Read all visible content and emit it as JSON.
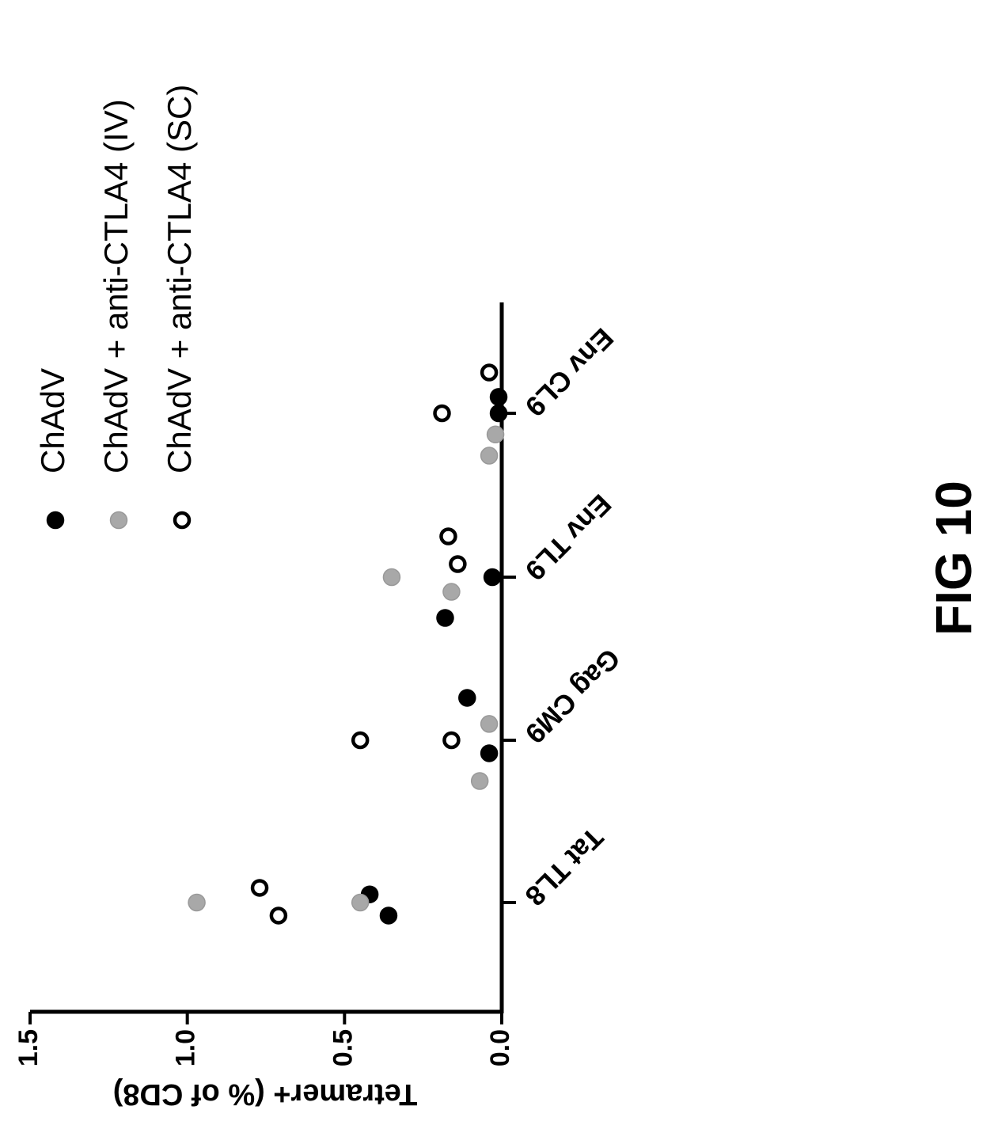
{
  "figure_label": "FIG 10",
  "chart_data": {
    "type": "scatter",
    "orientation": "rotated 90° counter-clockwise (value axis runs left-right, categories top-bottom)",
    "ylabel": "Tetramer+  (% of CD8)",
    "xlabel": "",
    "ylim": [
      0,
      1.5
    ],
    "yticks": [
      "0.0",
      "0.5",
      "1.0",
      "1.5"
    ],
    "categories": [
      "Tat TL8",
      "Gag CM9",
      "Env TL9",
      "Env CL9"
    ],
    "legend_position": "top",
    "series": [
      {
        "name": "ChAdV",
        "marker": "filled-circle",
        "color": "#000000",
        "points": [
          {
            "category": "Tat TL8",
            "offset": 0.05,
            "value": 0.42
          },
          {
            "category": "Tat TL8",
            "offset": -0.08,
            "value": 0.36
          },
          {
            "category": "Gag CM9",
            "offset": 0.26,
            "value": 0.11
          },
          {
            "category": "Gag CM9",
            "offset": -0.08,
            "value": 0.04
          },
          {
            "category": "Env TL9",
            "offset": -0.25,
            "value": 0.18
          },
          {
            "category": "Env TL9",
            "offset": 0.0,
            "value": 0.03
          },
          {
            "category": "Env CL9",
            "offset": 0.1,
            "value": 0.01
          },
          {
            "category": "Env CL9",
            "offset": 0.0,
            "value": 0.01
          }
        ]
      },
      {
        "name": "ChAdV + anti-CTLA4 (IV)",
        "marker": "filled-circle",
        "color": "#a8a8a8",
        "points": [
          {
            "category": "Tat TL8",
            "offset": 0.0,
            "value": 0.97
          },
          {
            "category": "Tat TL8",
            "offset": 0.0,
            "value": 0.45
          },
          {
            "category": "Gag CM9",
            "offset": 0.1,
            "value": 0.04
          },
          {
            "category": "Gag CM9",
            "offset": -0.25,
            "value": 0.07
          },
          {
            "category": "Env TL9",
            "offset": 0.0,
            "value": 0.35
          },
          {
            "category": "Env TL9",
            "offset": -0.09,
            "value": 0.16
          },
          {
            "category": "Env CL9",
            "offset": -0.13,
            "value": 0.02
          },
          {
            "category": "Env CL9",
            "offset": -0.26,
            "value": 0.04
          }
        ]
      },
      {
        "name": "ChAdV + anti-CTLA4 (SC)",
        "marker": "open-circle",
        "color": "#000000",
        "points": [
          {
            "category": "Tat TL8",
            "offset": 0.09,
            "value": 0.77
          },
          {
            "category": "Tat TL8",
            "offset": -0.08,
            "value": 0.71
          },
          {
            "category": "Gag CM9",
            "offset": 0.0,
            "value": 0.45
          },
          {
            "category": "Gag CM9",
            "offset": 0.0,
            "value": 0.16
          },
          {
            "category": "Env TL9",
            "offset": 0.25,
            "value": 0.17
          },
          {
            "category": "Env TL9",
            "offset": 0.08,
            "value": 0.14
          },
          {
            "category": "Env CL9",
            "offset": 0.0,
            "value": 0.19
          },
          {
            "category": "Env CL9",
            "offset": 0.25,
            "value": 0.04
          }
        ]
      }
    ]
  }
}
